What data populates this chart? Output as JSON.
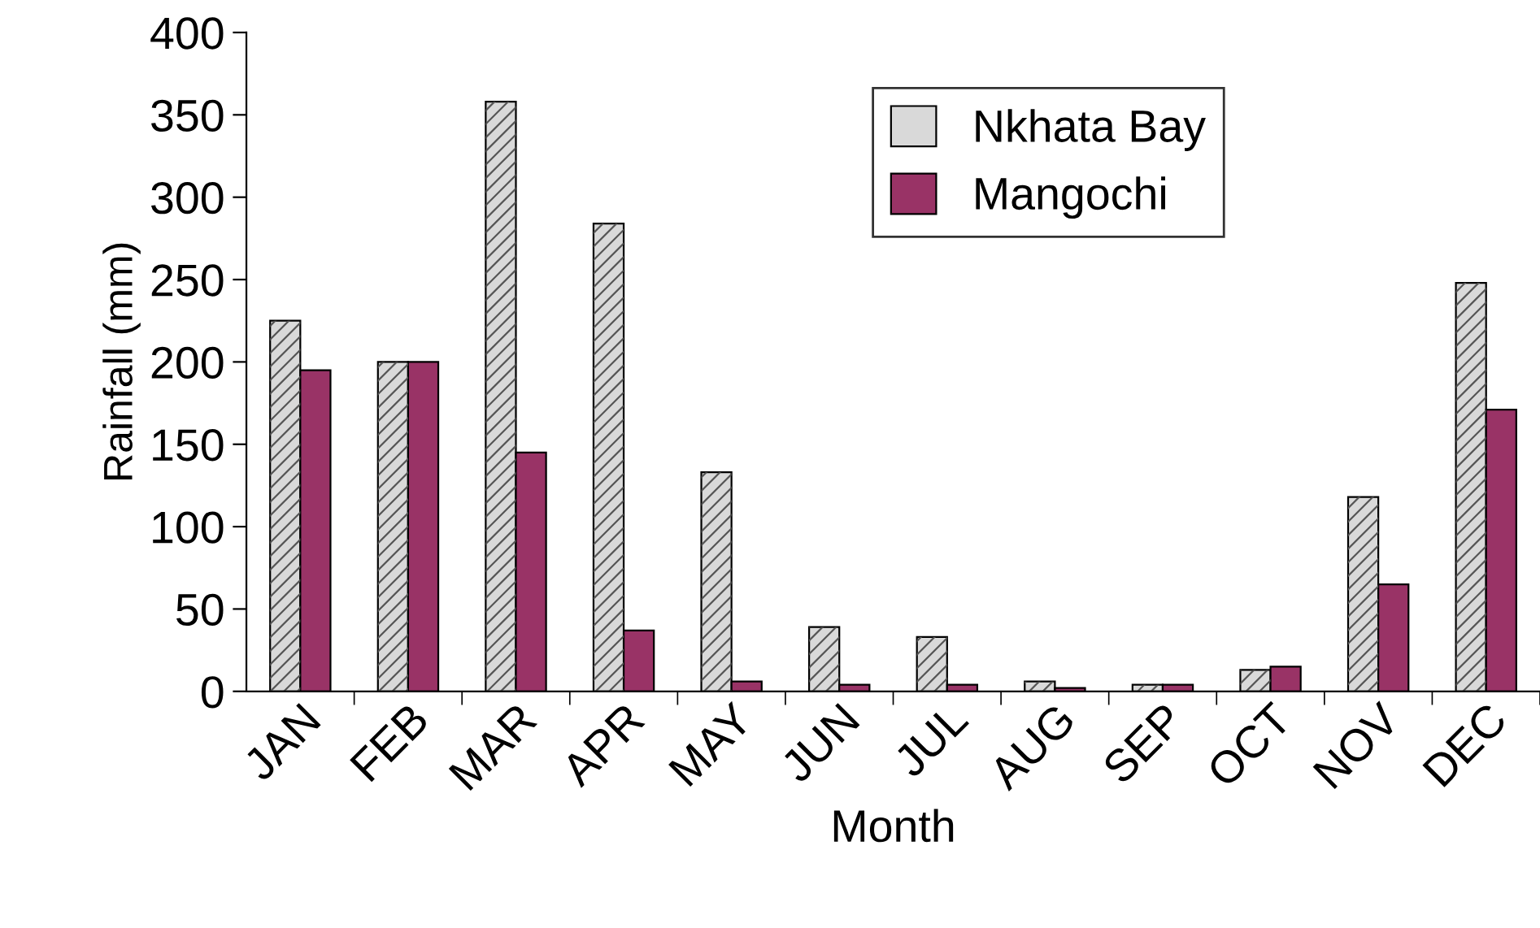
{
  "chart_data": {
    "type": "bar",
    "xlabel": "Month",
    "ylabel": "Rainfall (mm)",
    "categories": [
      "JAN",
      "FEB",
      "MAR",
      "APR",
      "MAY",
      "JUN",
      "JUL",
      "AUG",
      "SEP",
      "OCT",
      "NOV",
      "DEC"
    ],
    "series": [
      {
        "name": "Nkhata Bay",
        "color": "#d9d9d9",
        "values": [
          225,
          200,
          358,
          284,
          133,
          39,
          33,
          6,
          4,
          13,
          118,
          248
        ]
      },
      {
        "name": "Mangochi",
        "color": "#993366",
        "values": [
          195,
          200,
          145,
          37,
          6,
          4,
          4,
          2,
          4,
          15,
          65,
          171
        ]
      }
    ],
    "ylim": [
      0,
      400
    ],
    "yticks": [
      0,
      50,
      100,
      150,
      200,
      250,
      300,
      350,
      400
    ],
    "grid": false,
    "legend": "top right"
  }
}
